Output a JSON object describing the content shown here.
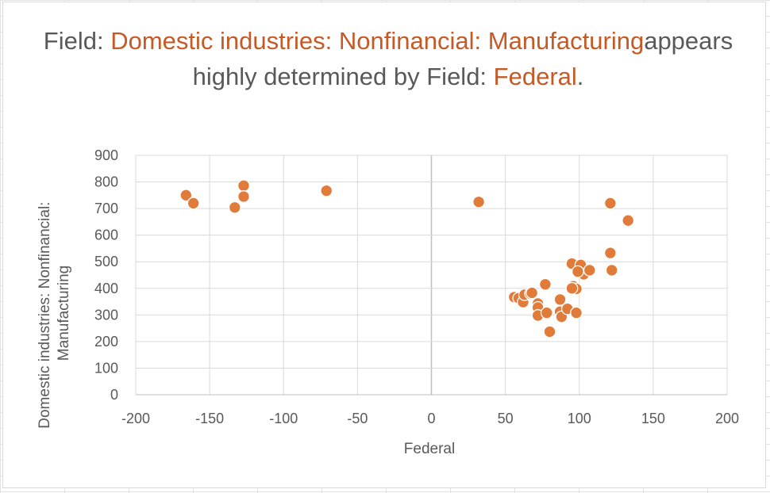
{
  "chart_data": {
    "type": "scatter",
    "title_parts": [
      {
        "text": "Field: ",
        "highlight": false
      },
      {
        "text": "Domestic industries: Nonfinancial:",
        "highlight": true
      },
      {
        "text": " ",
        "highlight": false
      },
      {
        "text": "Manufacturing",
        "highlight": true
      },
      {
        "text": "appears highly determined by Field: ",
        "highlight": false
      },
      {
        "text": "Federal",
        "highlight": true
      },
      {
        "text": ".",
        "highlight": false
      }
    ],
    "xlabel": "Federal",
    "ylabel_lines": [
      "Domestic industries: Nonfinancial:",
      "Manufacturing"
    ],
    "xlim": [
      -200,
      200
    ],
    "ylim": [
      0,
      900
    ],
    "xticks": [
      -200,
      -150,
      -100,
      -50,
      0,
      50,
      100,
      150,
      200
    ],
    "yticks": [
      0,
      100,
      200,
      300,
      400,
      500,
      600,
      700,
      800,
      900
    ],
    "xtick_labels": [
      "-200",
      "-150",
      "-100",
      "-50",
      "0",
      "50",
      "100",
      "150",
      "200"
    ],
    "ytick_labels": [
      "0",
      "100",
      "200",
      "300",
      "400",
      "500",
      "600",
      "700",
      "800",
      "900"
    ],
    "grid": true,
    "marker_color": "#e07b39",
    "title_color": "#595959",
    "highlight_color": "#c55a26",
    "points": [
      [
        -166,
        750
      ],
      [
        -161,
        720
      ],
      [
        -127,
        786
      ],
      [
        -127,
        745
      ],
      [
        -133,
        704
      ],
      [
        -71,
        767
      ],
      [
        32,
        725
      ],
      [
        121,
        720
      ],
      [
        133,
        655
      ],
      [
        121,
        533
      ],
      [
        122,
        468
      ],
      [
        95,
        493
      ],
      [
        101,
        488
      ],
      [
        103,
        453
      ],
      [
        107,
        468
      ],
      [
        99,
        463
      ],
      [
        96,
        408
      ],
      [
        98,
        398
      ],
      [
        95,
        400
      ],
      [
        77,
        415
      ],
      [
        56,
        367
      ],
      [
        59,
        363
      ],
      [
        62,
        348
      ],
      [
        63,
        376
      ],
      [
        67,
        380
      ],
      [
        68,
        383
      ],
      [
        72,
        343
      ],
      [
        72,
        328
      ],
      [
        72,
        298
      ],
      [
        78,
        308
      ],
      [
        80,
        237
      ],
      [
        87,
        358
      ],
      [
        87,
        312
      ],
      [
        88,
        293
      ],
      [
        92,
        323
      ],
      [
        98,
        308
      ]
    ]
  }
}
